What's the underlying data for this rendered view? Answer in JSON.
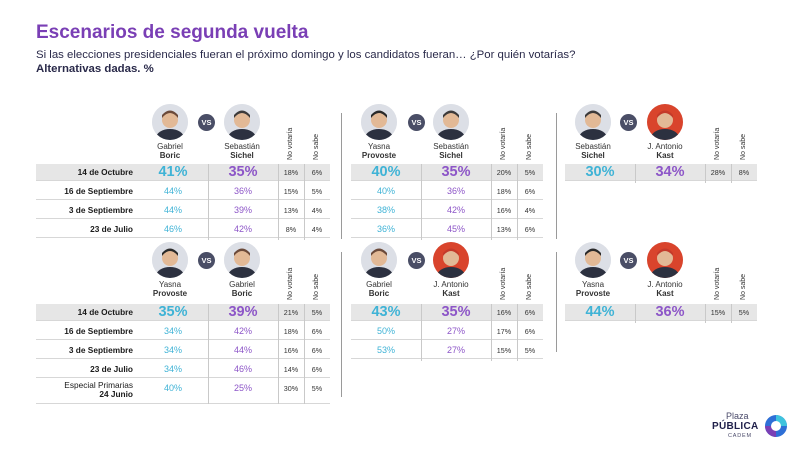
{
  "header": {
    "title": "Escenarios de segunda vuelta",
    "subtitle": "Si las elecciones presidenciales fueran el próximo domingo y los candidatos fueran… ¿Por quién votarías?",
    "note": "Alternativas dadas. %"
  },
  "labels": {
    "vs": "VS",
    "no_votaria": "No votaría",
    "no_sabe": "No sabe"
  },
  "logo": {
    "line1": "Plaza",
    "line2": "PÚBLICA",
    "line3": "CADEM"
  },
  "colors": {
    "title": "#7a3fb5",
    "candidate_a": "#3fb3d6",
    "candidate_b": "#8d56c8",
    "highlight_row": "#e6e6e6"
  },
  "chart_data": [
    {
      "type": "table",
      "candidates": [
        {
          "first": "Gabriel",
          "last": "Boric"
        },
        {
          "first": "Sebastián",
          "last": "Sichel"
        }
      ],
      "rows": [
        {
          "date": "14 de Octubre",
          "a": "41%",
          "b": "35%",
          "nv": "18%",
          "ns": "6%"
        },
        {
          "date": "16 de Septiembre",
          "a": "44%",
          "b": "36%",
          "nv": "15%",
          "ns": "5%"
        },
        {
          "date": "3 de Septiembre",
          "a": "44%",
          "b": "39%",
          "nv": "13%",
          "ns": "4%"
        },
        {
          "date": "23 de Julio",
          "a": "46%",
          "b": "42%",
          "nv": "8%",
          "ns": "4%"
        }
      ]
    },
    {
      "type": "table",
      "candidates": [
        {
          "first": "Yasna",
          "last": "Provoste"
        },
        {
          "first": "Sebastián",
          "last": "Sichel"
        }
      ],
      "rows": [
        {
          "a": "40%",
          "b": "35%",
          "nv": "20%",
          "ns": "5%"
        },
        {
          "a": "40%",
          "b": "36%",
          "nv": "18%",
          "ns": "6%"
        },
        {
          "a": "38%",
          "b": "42%",
          "nv": "16%",
          "ns": "4%"
        },
        {
          "a": "36%",
          "b": "45%",
          "nv": "13%",
          "ns": "6%"
        }
      ]
    },
    {
      "type": "table",
      "candidates": [
        {
          "first": "Sebastián",
          "last": "Sichel"
        },
        {
          "first": "J. Antonio",
          "last": "Kast"
        }
      ],
      "rows": [
        {
          "a": "30%",
          "b": "34%",
          "nv": "28%",
          "ns": "8%"
        }
      ]
    },
    {
      "type": "table",
      "candidates": [
        {
          "first": "Yasna",
          "last": "Provoste"
        },
        {
          "first": "Gabriel",
          "last": "Boric"
        }
      ],
      "rows": [
        {
          "date": "14 de Octubre",
          "a": "35%",
          "b": "39%",
          "nv": "21%",
          "ns": "5%"
        },
        {
          "date": "16 de Septiembre",
          "a": "34%",
          "b": "42%",
          "nv": "18%",
          "ns": "6%"
        },
        {
          "date": "3 de Septiembre",
          "a": "34%",
          "b": "44%",
          "nv": "16%",
          "ns": "6%"
        },
        {
          "date": "23 de Julio",
          "a": "34%",
          "b": "46%",
          "nv": "14%",
          "ns": "6%"
        },
        {
          "date_line1": "Especial Primarias",
          "date_line2": "24 Junio",
          "a": "40%",
          "b": "25%",
          "nv": "30%",
          "ns": "5%"
        }
      ]
    },
    {
      "type": "table",
      "candidates": [
        {
          "first": "Gabriel",
          "last": "Boric"
        },
        {
          "first": "J. Antonio",
          "last": "Kast"
        }
      ],
      "rows": [
        {
          "a": "43%",
          "b": "35%",
          "nv": "16%",
          "ns": "6%"
        },
        {
          "a": "50%",
          "b": "27%",
          "nv": "17%",
          "ns": "6%"
        },
        {
          "a": "53%",
          "b": "27%",
          "nv": "15%",
          "ns": "5%"
        }
      ]
    },
    {
      "type": "table",
      "candidates": [
        {
          "first": "Yasna",
          "last": "Provoste"
        },
        {
          "first": "J. Antonio",
          "last": "Kast"
        }
      ],
      "rows": [
        {
          "a": "44%",
          "b": "36%",
          "nv": "15%",
          "ns": "5%"
        }
      ]
    }
  ]
}
